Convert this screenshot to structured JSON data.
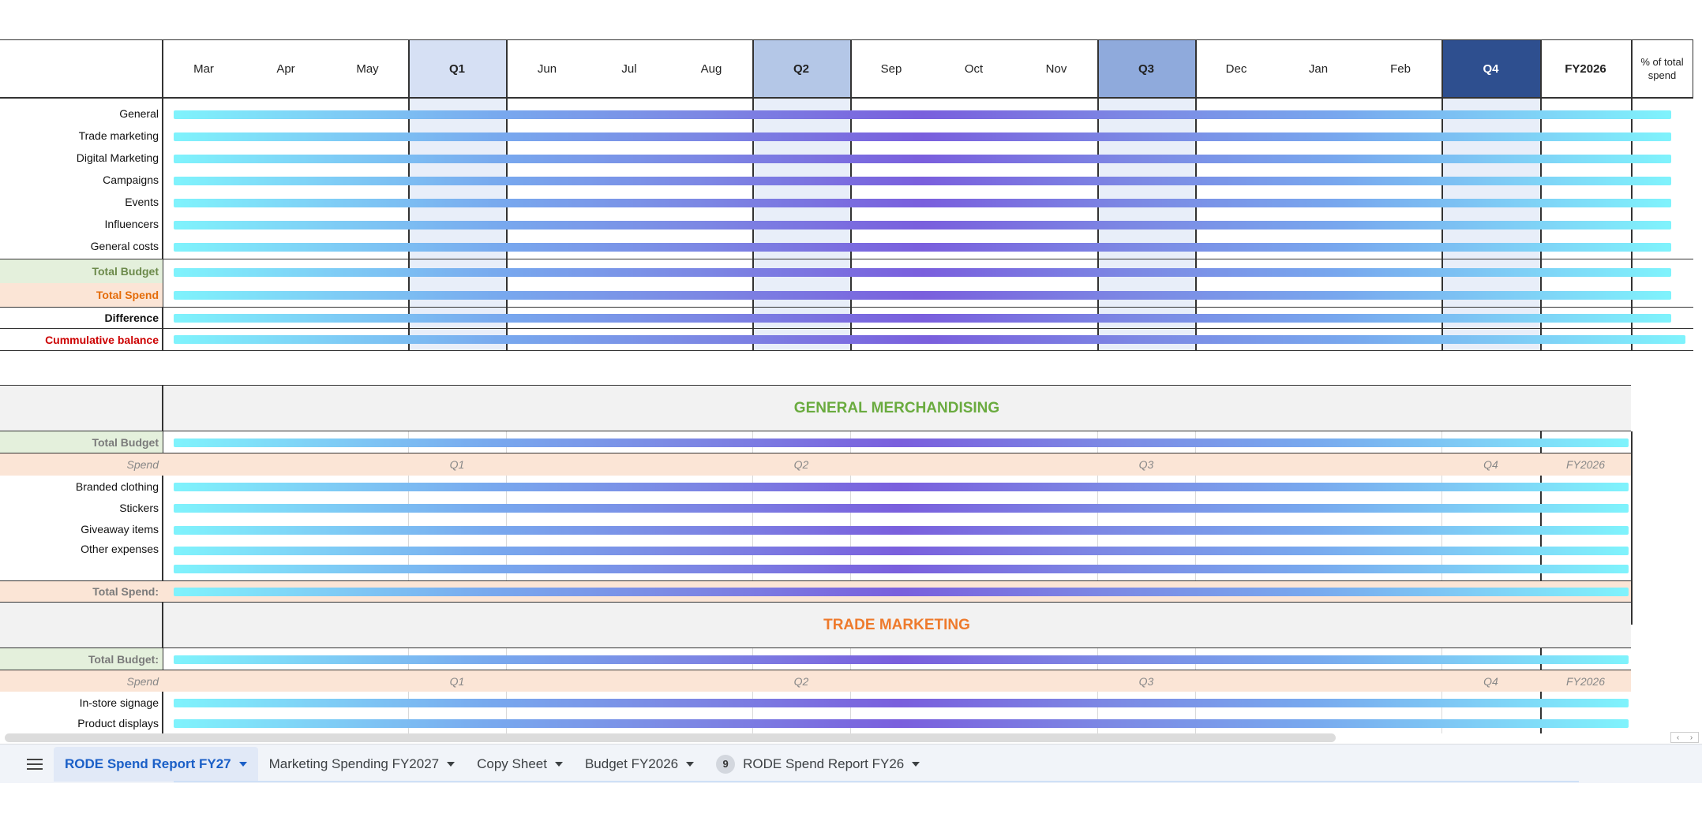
{
  "header": {
    "months": [
      "Mar",
      "Apr",
      "May",
      "Q1",
      "Jun",
      "Jul",
      "Aug",
      "Q2",
      "Sep",
      "Oct",
      "Nov",
      "Q3",
      "Dec",
      "Jan",
      "Feb",
      "Q4",
      "FY2026"
    ],
    "pct_label": "% of total spend"
  },
  "summary_rows": [
    "General",
    "Trade marketing",
    "Digital Marketing",
    "Campaigns",
    "Events",
    "Influencers",
    "General costs"
  ],
  "summary_totals": {
    "total_budget": "Total Budget",
    "total_spend": "Total Spend",
    "difference": "Difference",
    "cumulative": "Cummulative balance"
  },
  "general_merch": {
    "title": "GENERAL MERCHANDISING",
    "total_budget": "Total Budget",
    "spend": "Spend",
    "quarters": [
      "Q1",
      "Q2",
      "Q3",
      "Q4",
      "FY2026"
    ],
    "rows": [
      "Branded clothing",
      "Stickers",
      "Giveaway items",
      "Other expenses"
    ],
    "total_spend": "Total Spend:"
  },
  "trade_marketing": {
    "title": "TRADE MARKETING",
    "total_budget": "Total Budget:",
    "spend": "Spend",
    "quarters": [
      "Q1",
      "Q2",
      "Q3",
      "Q4",
      "FY2026"
    ],
    "rows": [
      "In-store signage",
      "Product displays"
    ]
  },
  "tabs": {
    "active": "RODE Spend Report FY27",
    "t2": "Marketing Spending FY2027",
    "t3": "Copy Sheet",
    "t4": "Budget FY2026",
    "t5_badge": "9",
    "t5": "RODE Spend Report FY26"
  },
  "colors": {
    "q1": "#d6e0f4",
    "q2": "#b4c7e7",
    "q3": "#8faadc",
    "q4": "#2e4f8f",
    "green_title": "#6aab3f",
    "orange_title": "#ee7a2c"
  }
}
